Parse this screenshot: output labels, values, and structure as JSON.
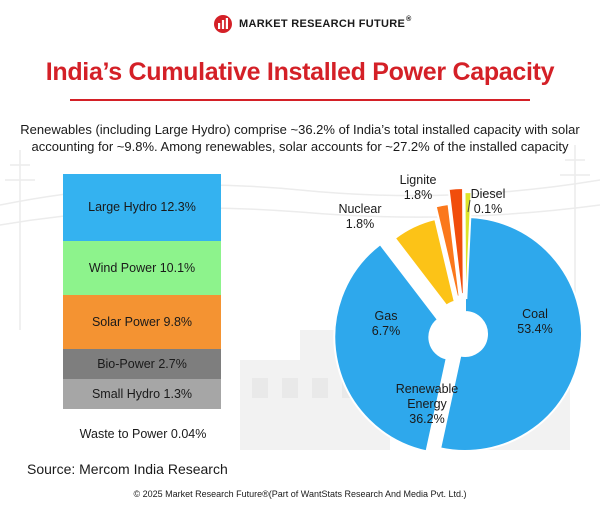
{
  "brand": {
    "logo_text": "MARKET RESEARCH FUTURE",
    "logo_reg": "®",
    "accent_color": "#d42027"
  },
  "source": "Source: Mercom India Research",
  "footer": "© 2025 Market Research Future®(Part of WantStats Research And Media Pvt. Ltd.)",
  "chart_data": [
    {
      "type": "bar",
      "title": "India’s Cumulative Installed Power Capacity",
      "subtitle": "Renewables (including Large Hydro) comprise ~36.2% of India’s total installed capacity with solar accounting for ~9.8%. Among renewables, solar accounts for ~27.2% of the installed capacity",
      "categories": [
        "Large Hydro",
        "Wind Power",
        "Solar Power",
        "Bio-Power",
        "Small Hydro",
        "Waste to Power"
      ],
      "values": [
        12.3,
        10.1,
        9.8,
        2.7,
        1.3,
        0.04
      ],
      "labels": [
        "Large Hydro 12.3%",
        "Wind Power 10.1%",
        "Solar Power 9.8%",
        "Bio-Power 2.7%",
        "Small Hydro 1.3%",
        "Waste to Power 0.04%"
      ],
      "colors": [
        "#34b2f0",
        "#8df38c",
        "#f49332",
        "#7e7e7e",
        "#a6a6a6",
        "#ffffff"
      ],
      "stacked": true
    },
    {
      "type": "pie",
      "donut": true,
      "categories": [
        "Coal",
        "Renewable Energy",
        "Gas",
        "Nuclear",
        "Lignite",
        "Diesel"
      ],
      "values": [
        53.4,
        36.2,
        6.7,
        1.8,
        1.8,
        0.1
      ],
      "label_lines": [
        [
          "Coal",
          "53.4%"
        ],
        [
          "Renewable",
          "Energy",
          "36.2%"
        ],
        [
          "Gas",
          "6.7%"
        ],
        [
          "Nuclear",
          "1.8%"
        ],
        [
          "Lignite",
          "1.8%"
        ],
        [
          "Diesel",
          "0.1%"
        ]
      ],
      "colors": [
        "#2ea8ec",
        "#2ea8ec",
        "#fcc317",
        "#fb781c",
        "#f14d0c",
        "#dde42a"
      ],
      "exploded": [
        "Renewable Energy",
        "Gas",
        "Nuclear",
        "Lignite",
        "Diesel"
      ]
    }
  ]
}
